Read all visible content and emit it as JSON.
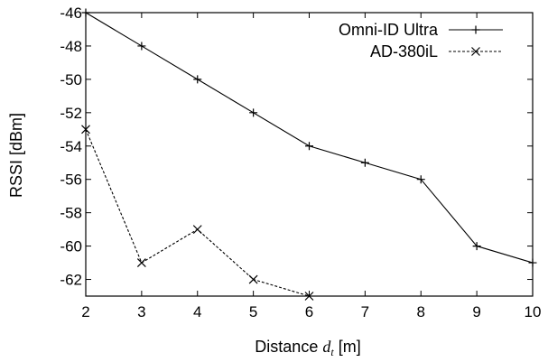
{
  "chart_data": {
    "type": "line",
    "xlabel": "Distance",
    "xlabel_var": "d",
    "xlabel_sub": "t",
    "xlabel_unit": "[m]",
    "ylabel": "RSSI [dBm]",
    "xlim": [
      2,
      10
    ],
    "ylim": [
      -63,
      -46
    ],
    "xticks": [
      "2",
      "3",
      "4",
      "5",
      "6",
      "7",
      "8",
      "9",
      "10"
    ],
    "yticks": [
      "-46",
      "-48",
      "-50",
      "-52",
      "-54",
      "-56",
      "-58",
      "-60",
      "-62"
    ],
    "grid": false,
    "legend_position": "top-right",
    "series": [
      {
        "name": "Omni-ID Ultra",
        "marker": "plus",
        "line_style": "solid",
        "x": [
          2,
          3,
          4,
          5,
          6,
          7,
          8,
          9,
          10
        ],
        "y": [
          -46,
          -48,
          -50,
          -52,
          -54,
          -55,
          -56,
          -60,
          -61
        ]
      },
      {
        "name": "AD-380iL",
        "marker": "x",
        "line_style": "dashed",
        "x": [
          2,
          3,
          4,
          5,
          6
        ],
        "y": [
          -53,
          -61,
          -59,
          -62,
          -63
        ]
      }
    ]
  }
}
